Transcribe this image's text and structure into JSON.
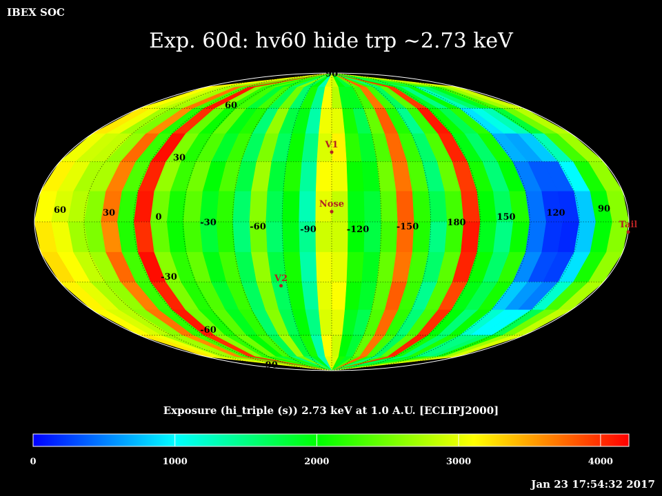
{
  "header": {
    "corner_label": "IBEX SOC",
    "title": "Exp.   60d: hv60 hide trp ~2.73 keV",
    "timestamp": "Jan 23 17:54:32 2017"
  },
  "chart_data": {
    "type": "heatmap",
    "projection": "mollweide",
    "title": "Exp.   60d: hv60 hide trp ~2.73 keV",
    "colorbar_title": "Exposure (hi_triple (s))  2.73 keV at 1.0 A.U. [ECLIPJ2000]",
    "colorbar_ticks": [
      "0",
      "1000",
      "2000",
      "3000",
      "4000"
    ],
    "color_range": [
      0,
      4200
    ],
    "colormap": [
      "#0000ff",
      "#00ffff",
      "#00ff00",
      "#ffff00",
      "#ff0000"
    ],
    "longitude_labels": [
      "60",
      "30",
      "0",
      "-30",
      "-60",
      "-90",
      "-120",
      "-150",
      "180",
      "150",
      "120",
      "90"
    ],
    "latitude_labels": [
      "90",
      "60",
      "30",
      "-30",
      "-60",
      "-90"
    ],
    "markers": [
      {
        "name": "Nose",
        "lon": 255,
        "lat": 5
      },
      {
        "name": "V1",
        "lon": 255,
        "lat": 35
      },
      {
        "name": "V2",
        "lon": 289,
        "lat": -32
      },
      {
        "name": "Tail",
        "lon": 75,
        "lat": -5
      }
    ],
    "grid": true,
    "exposure_strips_center_to_right": [
      [
        2900,
        2800,
        3000,
        3150,
        3050,
        2850,
        2900,
        3000,
        3100,
        3000,
        2900,
        2950
      ],
      [
        2000,
        1900,
        2100,
        2200,
        2050,
        1950,
        2000,
        2150,
        2050,
        1900,
        2000,
        2100
      ],
      [
        1800,
        1900,
        1700,
        1850,
        1950,
        1800,
        1750,
        1900,
        1850,
        1700,
        1800,
        1900
      ],
      [
        2400,
        2300,
        2450,
        2350,
        2500,
        2400,
        2300,
        2450,
        2400,
        2350,
        2450,
        2300
      ],
      [
        3750,
        3700,
        3800,
        3750,
        3700,
        3800,
        3750,
        3700,
        3800,
        3750,
        3700,
        3750
      ],
      [
        2200,
        2300,
        2150,
        2250,
        2350,
        2200,
        2150,
        2300,
        2250,
        2200,
        2300,
        2150
      ],
      [
        1500,
        1650,
        1450,
        1600,
        1550,
        1700,
        1500,
        1600,
        1450,
        1550,
        1650,
        1500
      ],
      [
        2300,
        2400,
        2250,
        2350,
        2450,
        2300,
        2250,
        2400,
        2350,
        2300,
        2400,
        2250
      ],
      [
        4000,
        3950,
        4100,
        4050,
        3950,
        4000,
        4100,
        4050,
        3900,
        4000,
        4050,
        3950
      ],
      [
        2000,
        1900,
        2050,
        1950,
        2100,
        2000,
        1900,
        2050,
        1950,
        2000,
        2100,
        1900
      ],
      [
        1600,
        1500,
        1700,
        1600,
        1550,
        1650,
        1500,
        1600,
        1700,
        1550,
        1600,
        1500
      ],
      [
        2150,
        2050,
        2200,
        2100,
        2000,
        2150,
        2050,
        2200,
        2100,
        2050,
        2150,
        2000
      ],
      [
        1700,
        1300,
        900,
        700,
        500,
        450,
        450,
        550,
        800,
        1200,
        1500,
        1700
      ],
      [
        2200,
        1600,
        1100,
        650,
        350,
        200,
        200,
        300,
        600,
        1000,
        1500,
        2100
      ],
      [
        2400,
        1900,
        1300,
        800,
        350,
        180,
        150,
        250,
        500,
        1000,
        1600,
        2300
      ],
      [
        2600,
        2300,
        1800,
        1300,
        1000,
        800,
        800,
        900,
        1200,
        1700,
        2100,
        2500
      ],
      [
        2800,
        2700,
        2500,
        2300,
        2100,
        2000,
        2000,
        2100,
        2300,
        2500,
        2700,
        2800
      ],
      [
        3000,
        2900,
        2800,
        2700,
        2650,
        2600,
        2600,
        2650,
        2750,
        2850,
        2950,
        3000
      ]
    ],
    "exposure_strips_center_to_left": [
      [
        3000,
        3100,
        3050,
        2950,
        3100,
        3000,
        2900,
        3050,
        3000,
        2950,
        3100,
        3000
      ],
      [
        1300,
        1450,
        1350,
        1500,
        1400,
        1300,
        1450,
        1350,
        1400,
        1500,
        1350,
        1300
      ],
      [
        2000,
        2100,
        1950,
        2050,
        2150,
        2000,
        1950,
        2100,
        2050,
        2000,
        2100,
        1950
      ],
      [
        1700,
        1600,
        1750,
        1650,
        1800,
        1700,
        1600,
        1750,
        1650,
        1700,
        1800,
        1600
      ],
      [
        2600,
        2500,
        2650,
        2550,
        2700,
        2600,
        2500,
        2650,
        2550,
        2600,
        2700,
        2500
      ],
      [
        1600,
        1700,
        1550,
        1650,
        1750,
        1600,
        1550,
        1700,
        1650,
        1600,
        1700,
        1550
      ],
      [
        2200,
        2300,
        2150,
        2250,
        2350,
        2200,
        2150,
        2300,
        2250,
        2200,
        2300,
        2150
      ],
      [
        1900,
        1800,
        1950,
        1850,
        2000,
        1900,
        1800,
        1950,
        1850,
        1900,
        2000,
        1800
      ],
      [
        2400,
        2300,
        2450,
        2350,
        2500,
        2400,
        2300,
        2450,
        2350,
        2400,
        2500,
        2300
      ],
      [
        2100,
        2200,
        2050,
        2150,
        2250,
        2100,
        2050,
        2200,
        2150,
        2100,
        2200,
        2050
      ],
      [
        2500,
        2600,
        2450,
        2550,
        2650,
        2500,
        2450,
        2600,
        2550,
        2500,
        2600,
        2450
      ],
      [
        4050,
        4100,
        4000,
        4150,
        4050,
        4100,
        4000,
        4150,
        4050,
        4100,
        4000,
        4050
      ],
      [
        2200,
        2300,
        2150,
        2250,
        2350,
        2200,
        2150,
        2300,
        2250,
        2200,
        2300,
        2150
      ],
      [
        3650,
        3700,
        3600,
        3750,
        3650,
        3700,
        3600,
        3750,
        3650,
        3700,
        3600,
        3650
      ],
      [
        2600,
        2700,
        2550,
        2650,
        2750,
        2600,
        2550,
        2700,
        2650,
        2600,
        2700,
        2550
      ],
      [
        2750,
        2800,
        2700,
        2850,
        2750,
        2800,
        2700,
        2850,
        2750,
        2800,
        2700,
        2750
      ],
      [
        3000,
        2950,
        3050,
        2900,
        3000,
        2950,
        3050,
        3100,
        3000,
        2950,
        3050,
        2900
      ],
      [
        3150,
        3100,
        3200,
        3050,
        3150,
        3100,
        3200,
        3250,
        3150,
        3100,
        3200,
        3050
      ]
    ]
  }
}
